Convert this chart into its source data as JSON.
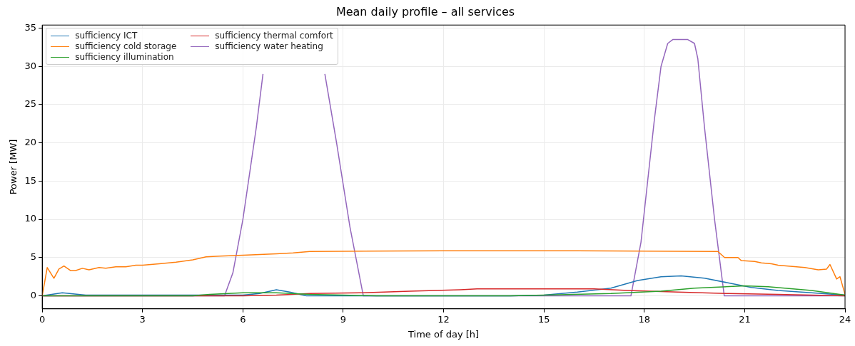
{
  "chart_data": {
    "type": "line",
    "title": "Mean daily profile – all services",
    "xlabel": "Time of day [h]",
    "ylabel": "Power [MW]",
    "xlim": [
      0,
      24
    ],
    "xticks": [
      0,
      3,
      6,
      9,
      12,
      15,
      18,
      21,
      24
    ],
    "ylim": [
      -1.7,
      35.4
    ],
    "yticks": [
      0,
      5,
      10,
      15,
      20,
      25,
      30,
      35
    ],
    "grid": true,
    "legend": "top left",
    "marker": "none",
    "line_style": "solid",
    "series": [
      {
        "name": "sufficiency ICT",
        "color": "#1f77b4",
        "x": [
          0,
          0.6,
          1.3,
          3,
          6,
          6.5,
          7,
          7.4,
          7.9,
          10,
          14,
          15,
          16,
          17,
          17.8,
          18.5,
          19.1,
          19.8,
          20.5,
          21.2,
          22,
          23,
          24
        ],
        "values": [
          0,
          0.4,
          0.1,
          0.1,
          0.1,
          0.3,
          0.8,
          0.5,
          0,
          0,
          0,
          0.1,
          0.5,
          1,
          2,
          2.5,
          2.6,
          2.3,
          1.7,
          1.1,
          0.7,
          0.4,
          0.1
        ]
      },
      {
        "name": "sufficiency cold storage",
        "color": "#ff7f0e",
        "x": [
          0,
          0.15,
          0.35,
          0.5,
          0.65,
          0.85,
          1,
          1.2,
          1.4,
          1.7,
          1.9,
          2.2,
          2.5,
          2.8,
          3,
          3.5,
          4,
          4.5,
          4.9,
          5.3,
          6,
          6.5,
          7,
          7.5,
          8,
          12,
          16,
          20.2,
          20.4,
          20.8,
          20.9,
          21.3,
          21.5,
          21.8,
          22,
          22.3,
          22.8,
          23.2,
          23.45,
          23.55,
          23.75,
          23.85,
          24
        ],
        "values": [
          0,
          3.7,
          2.3,
          3.5,
          3.9,
          3.3,
          3.3,
          3.6,
          3.4,
          3.7,
          3.6,
          3.8,
          3.8,
          4,
          4,
          4.2,
          4.4,
          4.7,
          5.1,
          5.2,
          5.3,
          5.4,
          5.5,
          5.6,
          5.8,
          5.9,
          5.9,
          5.8,
          5,
          5,
          4.6,
          4.5,
          4.3,
          4.2,
          4,
          3.9,
          3.7,
          3.4,
          3.5,
          4.1,
          2.2,
          2.5,
          0.2
        ]
      },
      {
        "name": "sufficiency illumination",
        "color": "#2ca02c",
        "x": [
          0,
          4.5,
          5,
          6,
          7,
          8,
          9,
          10,
          14,
          15,
          17,
          18.5,
          19.5,
          21,
          21.7,
          23,
          24
        ],
        "values": [
          0,
          0,
          0.2,
          0.4,
          0.4,
          0.2,
          0.1,
          0,
          0,
          0.1,
          0.3,
          0.6,
          1,
          1.3,
          1.2,
          0.7,
          0.1
        ]
      },
      {
        "name": "sufficiency thermal comfort",
        "color": "#d62728",
        "x": [
          0,
          6,
          7,
          8,
          9.5,
          11,
          12.5,
          13,
          15,
          16.5,
          17.5,
          19,
          20.5,
          22,
          24
        ],
        "values": [
          0,
          0,
          0.1,
          0.3,
          0.4,
          0.6,
          0.8,
          0.9,
          0.9,
          0.9,
          0.7,
          0.5,
          0.3,
          0.2,
          0
        ]
      },
      {
        "name": "sufficiency water heating",
        "color": "#9467bd",
        "x": [
          0,
          5.45,
          5.7,
          6,
          6.4,
          6.6,
          6.9,
          8.2,
          8.45,
          8.8,
          9.2,
          9.6,
          17.6,
          17.9,
          18.3,
          18.5,
          18.7,
          18.85,
          19.3,
          19.5,
          19.6,
          19.8,
          20.1,
          20.39,
          24
        ],
        "values": [
          0,
          0,
          3,
          10,
          22,
          29,
          null,
          null,
          29,
          20,
          9,
          0,
          0,
          7,
          23,
          30,
          33,
          33.5,
          33.5,
          33,
          31,
          22,
          10,
          0,
          0
        ]
      }
    ]
  }
}
